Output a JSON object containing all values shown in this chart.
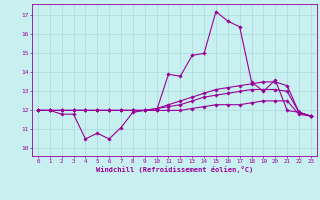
{
  "xlabel": "Windchill (Refroidissement éolien,°C)",
  "bg_color": "#c8f0f0",
  "line_color": "#990099",
  "grid_color": "#b0dede",
  "x_ticks": [
    0,
    1,
    2,
    3,
    4,
    5,
    6,
    7,
    8,
    9,
    10,
    11,
    12,
    13,
    14,
    15,
    16,
    17,
    18,
    19,
    20,
    21,
    22,
    23
  ],
  "y_ticks": [
    10,
    11,
    12,
    13,
    14,
    15,
    16,
    17
  ],
  "ylim": [
    9.6,
    17.6
  ],
  "xlim": [
    -0.5,
    23.5
  ],
  "series": [
    [
      12.0,
      12.0,
      11.8,
      11.8,
      10.5,
      10.8,
      10.5,
      11.1,
      11.9,
      12.0,
      12.0,
      13.9,
      13.8,
      14.9,
      15.0,
      17.2,
      16.7,
      16.4,
      13.5,
      13.0,
      13.6,
      12.0,
      11.9,
      11.7
    ],
    [
      12.0,
      12.0,
      12.0,
      12.0,
      12.0,
      12.0,
      12.0,
      12.0,
      12.0,
      12.0,
      12.0,
      12.0,
      12.0,
      12.1,
      12.2,
      12.3,
      12.3,
      12.3,
      12.4,
      12.5,
      12.5,
      12.5,
      11.8,
      11.7
    ],
    [
      12.0,
      12.0,
      12.0,
      12.0,
      12.0,
      12.0,
      12.0,
      12.0,
      12.0,
      12.0,
      12.1,
      12.2,
      12.3,
      12.5,
      12.7,
      12.8,
      12.9,
      13.0,
      13.1,
      13.1,
      13.1,
      13.0,
      11.9,
      11.7
    ],
    [
      12.0,
      12.0,
      12.0,
      12.0,
      12.0,
      12.0,
      12.0,
      12.0,
      12.0,
      12.0,
      12.1,
      12.3,
      12.5,
      12.7,
      12.9,
      13.1,
      13.2,
      13.3,
      13.4,
      13.5,
      13.5,
      13.3,
      11.9,
      11.7
    ]
  ]
}
